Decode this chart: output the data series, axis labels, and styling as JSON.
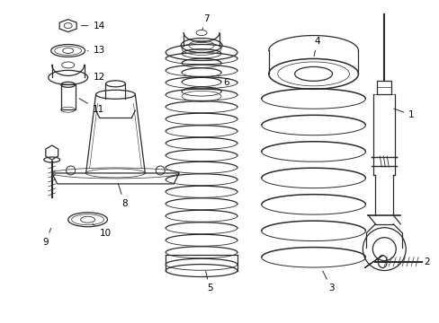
{
  "background_color": "#ffffff",
  "line_color": "#2a2a2a",
  "label_color": "#000000",
  "figsize": [
    4.89,
    3.6
  ],
  "dpi": 100,
  "label_fontsize": 7.5
}
